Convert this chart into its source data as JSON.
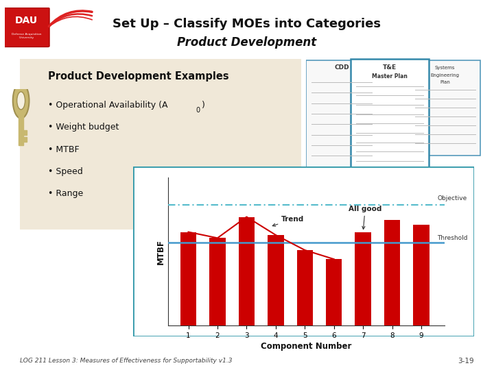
{
  "title_line1": "Set Up – Classify MOEs into Categories",
  "title_line2": "Product Development",
  "background_color": "#ffffff",
  "box_title": "Product Development Examples",
  "box_bg": "#f0e8d8",
  "box_border": "#c8b89a",
  "bullet_items": [
    "Operational Availability (A₀)",
    "Weight budget",
    "MTBF",
    "Speed",
    "Range"
  ],
  "bar_values": [
    0.62,
    0.58,
    0.72,
    0.6,
    0.5,
    0.44,
    0.62,
    0.7,
    0.67
  ],
  "bar_color": "#cc0000",
  "threshold": 0.55,
  "objective": 0.8,
  "threshold_color": "#4499cc",
  "objective_color": "#55bbcc",
  "xlabel": "Component Number",
  "ylabel": "MTBF",
  "xtick_labels": [
    "1",
    "2",
    "3",
    "4",
    "5",
    "6",
    "7",
    "8",
    "9"
  ],
  "trend_label": "Trend",
  "all_good_label": "All good",
  "objective_label": "Objective",
  "threshold_label": "Threshold",
  "chart_border_color": "#3399aa",
  "footer_text": "LOG 211 Lesson 3: Measures of Effectiveness for Supportability v1.3",
  "footer_right": "3-19"
}
